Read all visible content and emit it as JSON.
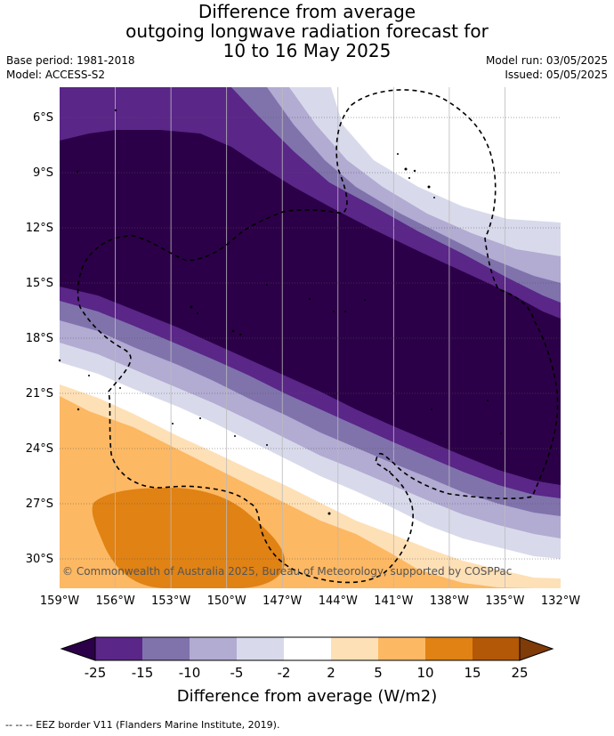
{
  "header": {
    "title_lines": [
      "Difference from average",
      "outgoing longwave radiation forecast for",
      "10 to 16 May 2025"
    ],
    "base_period": "Base period: 1981-2018",
    "model": "Model: ACCESS-S2",
    "model_run": "Model run: 03/05/2025",
    "issued": "Issued: 05/05/2025"
  },
  "map": {
    "lon_labels": [
      "159°W",
      "156°W",
      "153°W",
      "150°W",
      "147°W",
      "144°W",
      "141°W",
      "138°W",
      "135°W",
      "132°W"
    ],
    "lat_labels": [
      "6°S",
      "9°S",
      "12°S",
      "15°S",
      "18°S",
      "21°S",
      "24°S",
      "27°S",
      "30°S"
    ],
    "copyright": "© Commonwealth of Australia 2025, Bureau of Meteorology, supported by COSPPac"
  },
  "colorbar": {
    "ticks": [
      "-25",
      "-15",
      "-10",
      "-5",
      "-2",
      "2",
      "5",
      "10",
      "15",
      "25"
    ],
    "colors": {
      "below": "#2c0048",
      "bins": [
        "#5a2688",
        "#8073ac",
        "#b2abd2",
        "#d8daeb",
        "#ffffff",
        "#fee0b6",
        "#fdb863",
        "#e08214",
        "#b35806"
      ],
      "above": "#7f3b08"
    },
    "label": "Difference from average (W/m2)"
  },
  "legend_footer": "--  --  -- EEZ border V11 (Flanders Marine Institute, 2019)."
}
